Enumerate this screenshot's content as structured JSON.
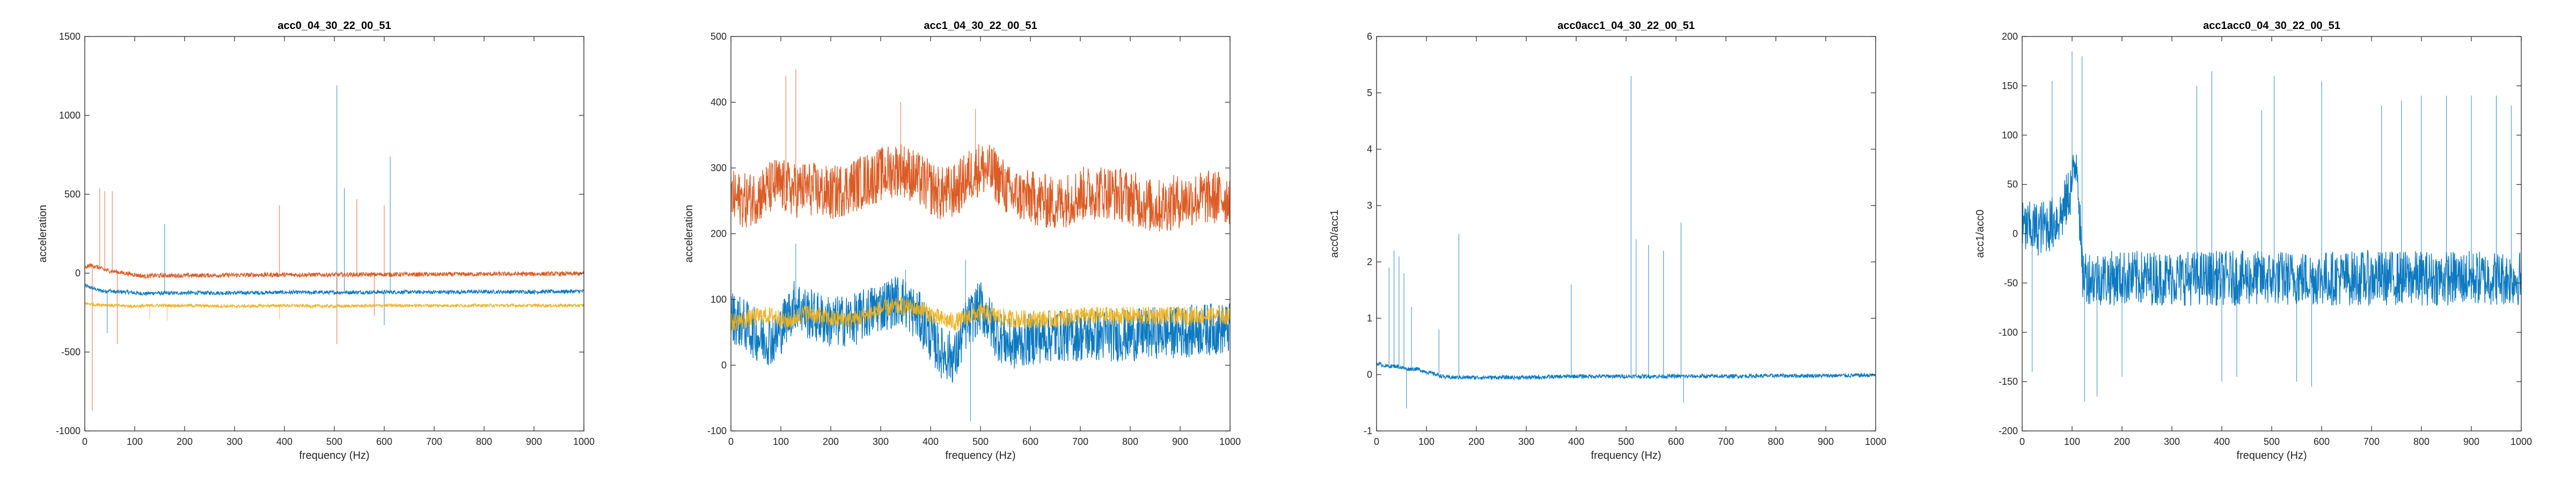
{
  "colors": {
    "blue": "#0072BD",
    "orange": "#D95319",
    "yellow": "#EDB120",
    "axis": "#262626"
  },
  "chart_data": [
    {
      "type": "line",
      "title": "acc0_04_30_22_00_51",
      "xlabel": "frequency (Hz)",
      "ylabel": "acceleration",
      "xlim": [
        0,
        1000
      ],
      "ylim": [
        -1000,
        1500
      ],
      "xticks": [
        "0",
        "100",
        "200",
        "300",
        "400",
        "500",
        "600",
        "700",
        "800",
        "900",
        "1000"
      ],
      "yticks": [
        "-1000",
        "-500",
        "0",
        "500",
        "1000",
        "1500"
      ],
      "grid": false,
      "series": [
        {
          "color": "#0072BD",
          "values": [
            [
              0,
              -80
            ],
            [
              10,
              -90
            ],
            [
              20,
              -100
            ],
            [
              30,
              -110
            ],
            [
              40,
              -115
            ],
            [
              50,
              -110
            ],
            [
              60,
              -120
            ],
            [
              80,
              -118
            ],
            [
              100,
              -125
            ],
            [
              120,
              -130
            ],
            [
              140,
              -125
            ],
            [
              160,
              -128
            ],
            [
              200,
              -125
            ],
            [
              300,
              -125
            ],
            [
              400,
              -122
            ],
            [
              500,
              -122
            ],
            [
              600,
              -120
            ],
            [
              700,
              -120
            ],
            [
              800,
              -118
            ],
            [
              900,
              -118
            ],
            [
              1000,
              -115
            ]
          ],
          "noise": 12,
          "spikes": [
            [
              45,
              -380
            ],
            [
              160,
              310
            ],
            [
              505,
              1190
            ],
            [
              520,
              540
            ],
            [
              600,
              -330
            ],
            [
              612,
              740
            ]
          ]
        },
        {
          "color": "#D95319",
          "values": [
            [
              0,
              30
            ],
            [
              10,
              50
            ],
            [
              20,
              45
            ],
            [
              40,
              20
            ],
            [
              60,
              10
            ],
            [
              80,
              0
            ],
            [
              100,
              -10
            ],
            [
              120,
              -20
            ],
            [
              140,
              -15
            ],
            [
              160,
              -15
            ],
            [
              200,
              -15
            ],
            [
              300,
              -12
            ],
            [
              400,
              -10
            ],
            [
              500,
              -10
            ],
            [
              600,
              -8
            ],
            [
              700,
              -8
            ],
            [
              800,
              -6
            ],
            [
              900,
              -5
            ],
            [
              1000,
              -4
            ]
          ],
          "noise": 14,
          "spikes": [
            [
              15,
              -870
            ],
            [
              30,
              540
            ],
            [
              40,
              520
            ],
            [
              55,
              520
            ],
            [
              65,
              -450
            ],
            [
              390,
              430
            ],
            [
              505,
              -450
            ],
            [
              545,
              470
            ],
            [
              580,
              -270
            ],
            [
              600,
              430
            ]
          ]
        },
        {
          "color": "#EDB120",
          "values": [
            [
              0,
              -190
            ],
            [
              20,
              -200
            ],
            [
              40,
              -200
            ],
            [
              60,
              -205
            ],
            [
              100,
              -210
            ],
            [
              140,
              -205
            ],
            [
              200,
              -205
            ],
            [
              300,
              -210
            ],
            [
              400,
              -205
            ],
            [
              500,
              -210
            ],
            [
              600,
              -205
            ],
            [
              700,
              -205
            ],
            [
              800,
              -205
            ],
            [
              900,
              -205
            ],
            [
              1000,
              -205
            ]
          ],
          "noise": 10,
          "spikes": [
            [
              130,
              -290
            ],
            [
              165,
              -300
            ],
            [
              390,
              -290
            ]
          ]
        }
      ]
    },
    {
      "type": "line",
      "title": "acc1_04_30_22_00_51",
      "xlabel": "frequency (Hz)",
      "ylabel": "acceleration",
      "xlim": [
        0,
        1000
      ],
      "ylim": [
        -100,
        500
      ],
      "xticks": [
        "0",
        "100",
        "200",
        "300",
        "400",
        "500",
        "600",
        "700",
        "800",
        "900",
        "1000"
      ],
      "yticks": [
        "-100",
        "0",
        "100",
        "200",
        "300",
        "400",
        "500"
      ],
      "grid": false,
      "series": [
        {
          "color": "#0072BD",
          "values": [
            [
              0,
              75
            ],
            [
              30,
              60
            ],
            [
              60,
              40
            ],
            [
              90,
              40
            ],
            [
              110,
              70
            ],
            [
              130,
              95
            ],
            [
              150,
              80
            ],
            [
              200,
              65
            ],
            [
              250,
              70
            ],
            [
              300,
              90
            ],
            [
              340,
              100
            ],
            [
              380,
              70
            ],
            [
              420,
              20
            ],
            [
              450,
              10
            ],
            [
              470,
              60
            ],
            [
              500,
              90
            ],
            [
              530,
              50
            ],
            [
              560,
              30
            ],
            [
              600,
              40
            ],
            [
              650,
              45
            ],
            [
              700,
              45
            ],
            [
              750,
              45
            ],
            [
              800,
              45
            ],
            [
              850,
              50
            ],
            [
              900,
              50
            ],
            [
              950,
              55
            ],
            [
              1000,
              55
            ]
          ],
          "noise": 40,
          "spikes": [
            [
              130,
              185
            ],
            [
              350,
              145
            ],
            [
              470,
              160
            ],
            [
              480,
              -85
            ]
          ]
        },
        {
          "color": "#D95319",
          "values": [
            [
              0,
              255
            ],
            [
              30,
              250
            ],
            [
              60,
              260
            ],
            [
              90,
              275
            ],
            [
              110,
              270
            ],
            [
              130,
              265
            ],
            [
              150,
              270
            ],
            [
              200,
              260
            ],
            [
              250,
              275
            ],
            [
              300,
              290
            ],
            [
              340,
              300
            ],
            [
              380,
              280
            ],
            [
              420,
              260
            ],
            [
              450,
              265
            ],
            [
              480,
              290
            ],
            [
              500,
              300
            ],
            [
              530,
              290
            ],
            [
              560,
              260
            ],
            [
              600,
              255
            ],
            [
              650,
              245
            ],
            [
              700,
              260
            ],
            [
              750,
              265
            ],
            [
              800,
              255
            ],
            [
              850,
              240
            ],
            [
              900,
              250
            ],
            [
              950,
              255
            ],
            [
              1000,
              255
            ]
          ],
          "noise": 42,
          "spikes": [
            [
              110,
              440
            ],
            [
              130,
              450
            ],
            [
              340,
              400
            ],
            [
              490,
              390
            ]
          ]
        },
        {
          "color": "#EDB120",
          "values": [
            [
              0,
              65
            ],
            [
              30,
              70
            ],
            [
              60,
              75
            ],
            [
              90,
              75
            ],
            [
              110,
              65
            ],
            [
              150,
              80
            ],
            [
              200,
              70
            ],
            [
              250,
              70
            ],
            [
              300,
              85
            ],
            [
              340,
              90
            ],
            [
              380,
              85
            ],
            [
              420,
              70
            ],
            [
              450,
              65
            ],
            [
              480,
              75
            ],
            [
              500,
              80
            ],
            [
              530,
              75
            ],
            [
              560,
              70
            ],
            [
              600,
              70
            ],
            [
              650,
              70
            ],
            [
              700,
              75
            ],
            [
              750,
              75
            ],
            [
              800,
              75
            ],
            [
              850,
              75
            ],
            [
              900,
              75
            ],
            [
              950,
              75
            ],
            [
              1000,
              75
            ]
          ],
          "noise": 14,
          "spikes": []
        }
      ]
    },
    {
      "type": "line",
      "title": "acc0acc1_04_30_22_00_51",
      "xlabel": "frequency (Hz)",
      "ylabel": "acc0/acc1",
      "xlim": [
        0,
        1000
      ],
      "ylim": [
        -1,
        6
      ],
      "xticks": [
        "0",
        "100",
        "200",
        "300",
        "400",
        "500",
        "600",
        "700",
        "800",
        "900",
        "1000"
      ],
      "yticks": [
        "-1",
        "0",
        "1",
        "2",
        "3",
        "4",
        "5",
        "6"
      ],
      "grid": false,
      "series": [
        {
          "color": "#0072BD",
          "values": [
            [
              0,
              0.2
            ],
            [
              20,
              0.15
            ],
            [
              40,
              0.15
            ],
            [
              60,
              0.1
            ],
            [
              80,
              0.1
            ],
            [
              100,
              0.05
            ],
            [
              120,
              0.0
            ],
            [
              140,
              -0.05
            ],
            [
              160,
              -0.05
            ],
            [
              200,
              -0.05
            ],
            [
              300,
              -0.05
            ],
            [
              400,
              -0.03
            ],
            [
              500,
              -0.03
            ],
            [
              600,
              -0.03
            ],
            [
              700,
              -0.03
            ],
            [
              800,
              -0.02
            ],
            [
              900,
              -0.02
            ],
            [
              1000,
              -0.01
            ]
          ],
          "noise": 0.035,
          "spikes": [
            [
              25,
              1.9
            ],
            [
              35,
              2.2
            ],
            [
              45,
              2.1
            ],
            [
              55,
              1.8
            ],
            [
              60,
              -0.6
            ],
            [
              70,
              1.2
            ],
            [
              125,
              0.8
            ],
            [
              165,
              2.5
            ],
            [
              390,
              1.6
            ],
            [
              510,
              5.3
            ],
            [
              520,
              2.4
            ],
            [
              545,
              2.3
            ],
            [
              575,
              2.2
            ],
            [
              610,
              2.7
            ],
            [
              615,
              -0.5
            ]
          ]
        }
      ]
    },
    {
      "type": "line",
      "title": "acc1acc0_04_30_22_00_51",
      "xlabel": "frequency (Hz)",
      "ylabel": "acc1/acc0",
      "xlim": [
        0,
        1000
      ],
      "ylim": [
        -200,
        200
      ],
      "xticks": [
        "0",
        "100",
        "200",
        "300",
        "400",
        "500",
        "600",
        "700",
        "800",
        "900",
        "1000"
      ],
      "yticks": [
        "-200",
        "-150",
        "-100",
        "-50",
        "0",
        "50",
        "100",
        "150",
        "200"
      ],
      "grid": false,
      "series": [
        {
          "color": "#0072BD",
          "values": [
            [
              0,
              5
            ],
            [
              30,
              5
            ],
            [
              60,
              10
            ],
            [
              80,
              20
            ],
            [
              100,
              50
            ],
            [
              110,
              80
            ],
            [
              120,
              -40
            ],
            [
              140,
              -45
            ],
            [
              160,
              -45
            ],
            [
              200,
              -45
            ],
            [
              250,
              -45
            ],
            [
              300,
              -45
            ],
            [
              350,
              -45
            ],
            [
              400,
              -45
            ],
            [
              500,
              -45
            ],
            [
              600,
              -45
            ],
            [
              700,
              -45
            ],
            [
              800,
              -45
            ],
            [
              900,
              -45
            ],
            [
              1000,
              -45
            ]
          ],
          "noise": 28,
          "spikes": [
            [
              20,
              -140
            ],
            [
              60,
              155
            ],
            [
              100,
              185
            ],
            [
              120,
              180
            ],
            [
              125,
              -170
            ],
            [
              150,
              -165
            ],
            [
              200,
              -145
            ],
            [
              350,
              150
            ],
            [
              380,
              165
            ],
            [
              400,
              -150
            ],
            [
              430,
              -145
            ],
            [
              480,
              125
            ],
            [
              505,
              160
            ],
            [
              550,
              -150
            ],
            [
              580,
              -155
            ],
            [
              600,
              155
            ],
            [
              720,
              130
            ],
            [
              760,
              135
            ],
            [
              800,
              140
            ],
            [
              850,
              140
            ],
            [
              900,
              140
            ],
            [
              950,
              140
            ],
            [
              980,
              130
            ]
          ]
        }
      ]
    }
  ]
}
